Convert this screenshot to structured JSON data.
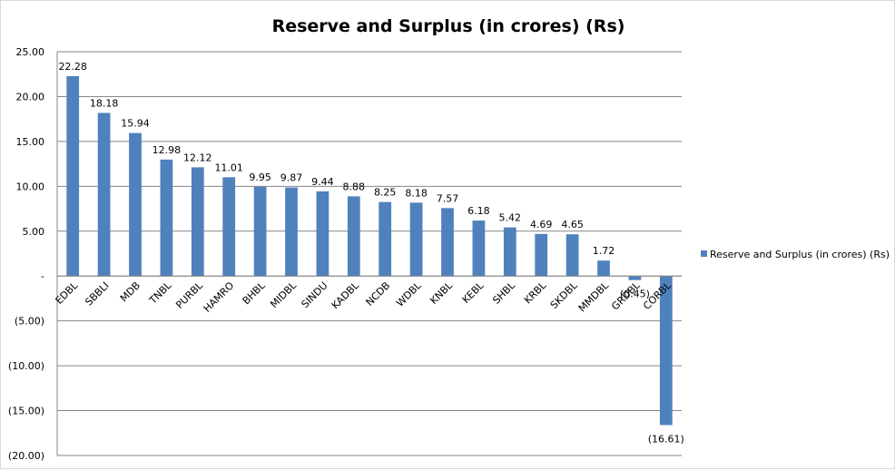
{
  "chart_data": {
    "type": "bar",
    "title": "Reserve and Surplus (in crores) (Rs)",
    "xlabel": "",
    "ylabel": "",
    "ylim": [
      -20,
      25
    ],
    "yticks": [
      25,
      20,
      15,
      10,
      5,
      0,
      -5,
      -10,
      -15,
      -20
    ],
    "ytick_labels": [
      "25.00",
      "20.00",
      "15.00",
      "10.00",
      "5.00",
      "-",
      "(5.00)",
      "(10.00)",
      "(15.00)",
      "(20.00)"
    ],
    "grid": true,
    "legend_position": "right",
    "categories": [
      "EDBL",
      "SBBLI",
      "MDB",
      "TNBL",
      "PURBL",
      "HAMRO",
      "BHBL",
      "MIDBL",
      "SINDU",
      "KADBL",
      "NCDB",
      "WDBL",
      "KNBL",
      "KEBL",
      "SHBL",
      "KRBL",
      "SKDBL",
      "MMDBL",
      "GRDBL",
      "CORBL"
    ],
    "series": [
      {
        "name": "Reserve and Surplus (in crores) (Rs)",
        "color": "#4f81bd",
        "values": [
          22.28,
          18.18,
          15.94,
          12.98,
          12.12,
          11.01,
          9.95,
          9.87,
          9.44,
          8.88,
          8.25,
          8.18,
          7.57,
          6.18,
          5.42,
          4.69,
          4.65,
          1.72,
          -0.45,
          -16.61
        ],
        "data_labels": [
          "22.28",
          "18.18",
          "15.94",
          "12.98",
          "12.12",
          "11.01",
          "9.95",
          "9.87",
          "9.44",
          "8.88",
          "8.25",
          "8.18",
          "7.57",
          "6.18",
          "5.42",
          "4.69",
          "4.65",
          "1.72",
          "(0.45)",
          "(16.61)"
        ]
      }
    ]
  }
}
